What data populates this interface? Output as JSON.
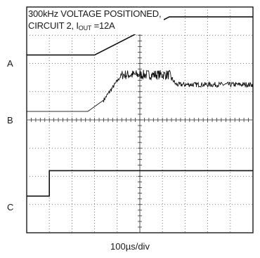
{
  "chart_data": {
    "type": "line",
    "title_line1": "300kHz VOLTAGE POSITIONED,",
    "title_line2_prefix": "CIRCUIT 2, I",
    "title_line2_sub": "OUT",
    "title_line2_suffix": " =12A",
    "xlabel": "100µs/div",
    "grid": true,
    "divisions": {
      "x": 10,
      "y": 8
    },
    "channels": [
      {
        "name": "A",
        "x": [
          0,
          3.0,
          6.3,
          10
        ],
        "y": [
          6.3,
          6.3,
          7.65,
          7.65
        ]
      },
      {
        "name": "B",
        "x": [
          0,
          2.7,
          3.4,
          4.2,
          6.3,
          6.6,
          10
        ],
        "y": [
          4.3,
          4.3,
          4.7,
          5.6,
          5.6,
          5.25,
          5.25
        ],
        "noisy_from": 3.4
      },
      {
        "name": "C",
        "x": [
          0,
          1.0,
          1.0,
          10
        ],
        "y": [
          1.3,
          1.3,
          2.2,
          2.2
        ]
      }
    ]
  }
}
